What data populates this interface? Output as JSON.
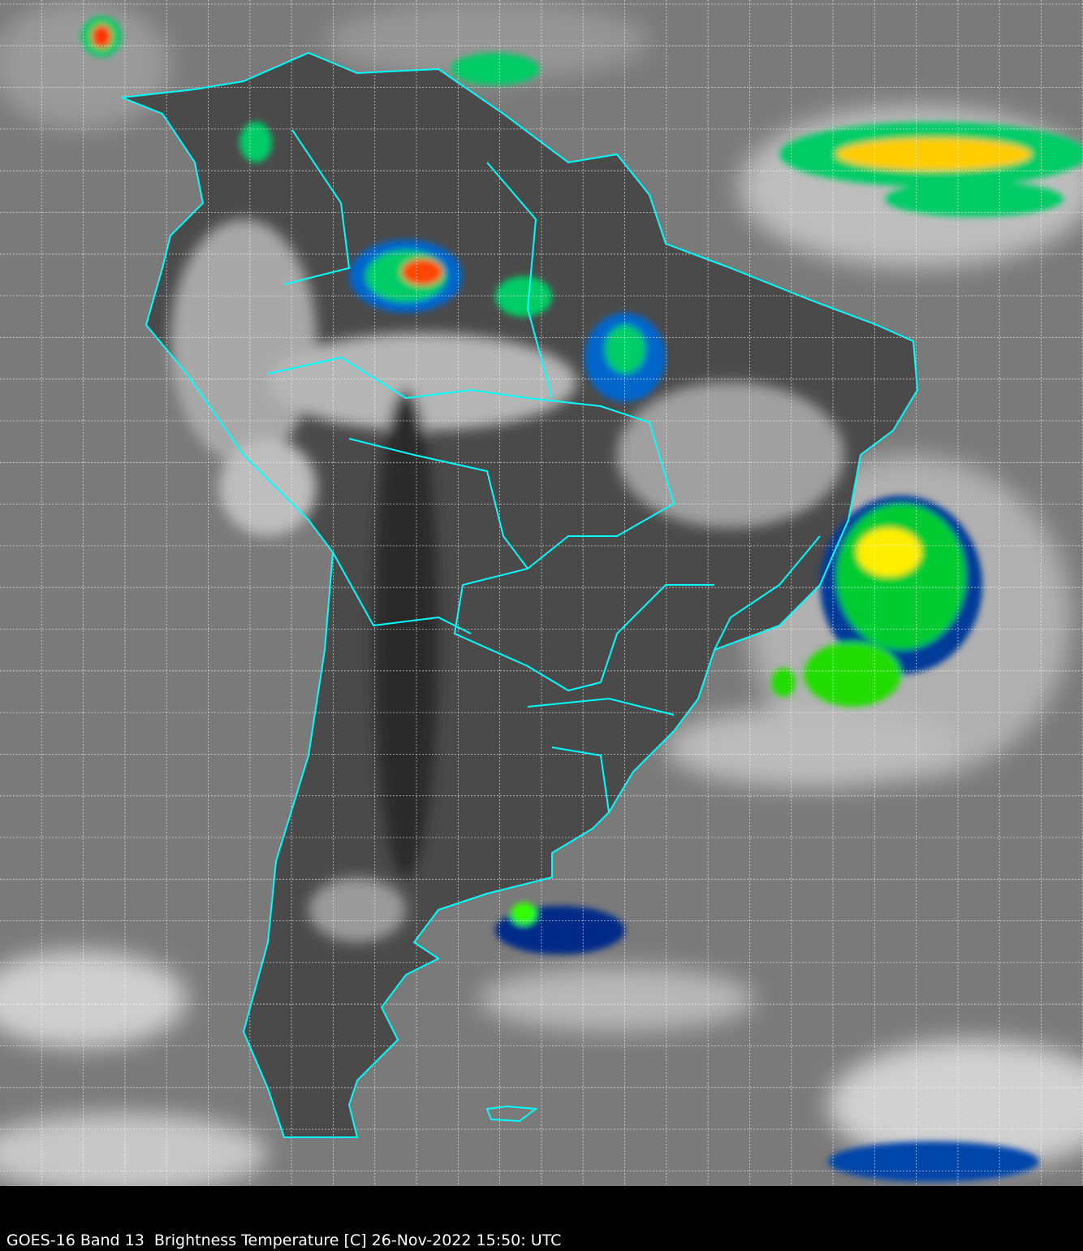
{
  "caption": "GOES-16 Band 13  Brightness Temperature [C] 26-Nov-2022 15:50: UTC",
  "colors": {
    "background": "#000000",
    "coastline": "#00ffff",
    "grid": "#ffffff",
    "ocean": "#7a7a7a",
    "land": "#3a3a3a",
    "cloud": "#e0e0e0",
    "convection_scale": [
      "#001a66",
      "#0066cc",
      "#00cc66",
      "#aaff00",
      "#ffff00",
      "#ff8800",
      "#ff0000",
      "#550000"
    ]
  }
}
